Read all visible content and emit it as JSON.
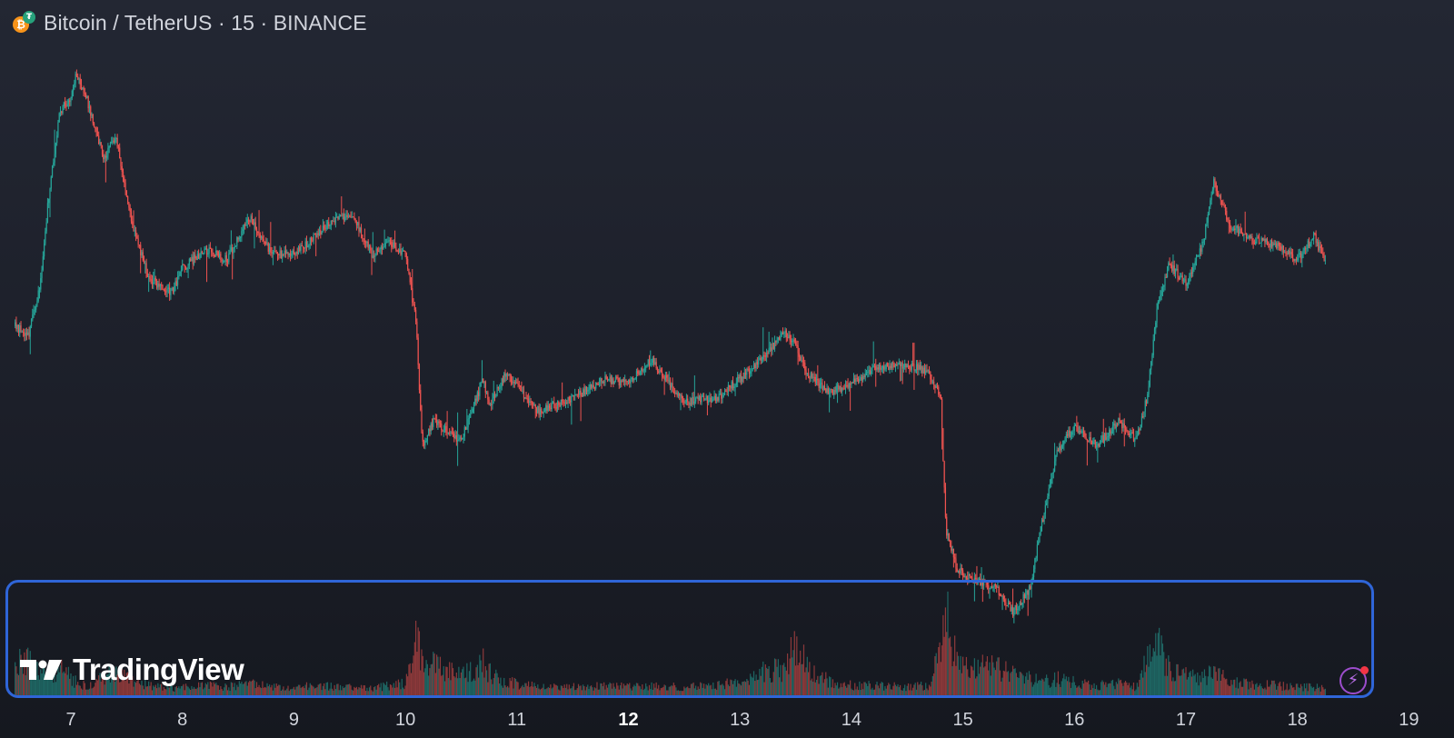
{
  "header": {
    "title": "Bitcoin / TetherUS · 15 · BINANCE",
    "icons": [
      "bitcoin-icon",
      "tether-icon"
    ]
  },
  "branding": {
    "logo_text": "TradingView"
  },
  "colors": {
    "up": "#26a69a",
    "down": "#ef5350",
    "highlight_border": "#2f65d8",
    "flash_button": "#9c4dcc"
  },
  "time_axis": {
    "labels": [
      {
        "text": "7",
        "bold": false
      },
      {
        "text": "8",
        "bold": false
      },
      {
        "text": "9",
        "bold": false
      },
      {
        "text": "10",
        "bold": false
      },
      {
        "text": "11",
        "bold": false
      },
      {
        "text": "12",
        "bold": true
      },
      {
        "text": "13",
        "bold": false
      },
      {
        "text": "14",
        "bold": false
      },
      {
        "text": "15",
        "bold": false
      },
      {
        "text": "16",
        "bold": false
      },
      {
        "text": "17",
        "bold": false
      },
      {
        "text": "18",
        "bold": false
      },
      {
        "text": "19",
        "bold": false
      }
    ]
  },
  "chart_data": {
    "type": "candlestick",
    "title": "Bitcoin / TetherUS · 15 · BINANCE",
    "interval": "15",
    "exchange": "BINANCE",
    "x": [
      6.5,
      6.62,
      6.72,
      6.8,
      6.9,
      7.0,
      7.05,
      7.15,
      7.3,
      7.4,
      7.55,
      7.7,
      7.9,
      8.0,
      8.2,
      8.4,
      8.6,
      8.8,
      9.0,
      9.2,
      9.4,
      9.55,
      9.7,
      9.85,
      10.0,
      10.1,
      10.15,
      10.25,
      10.5,
      10.7,
      10.75,
      10.9,
      11.2,
      11.5,
      11.8,
      12.0,
      12.2,
      12.5,
      12.8,
      13.0,
      13.2,
      13.4,
      13.5,
      13.6,
      13.8,
      14.0,
      14.2,
      14.5,
      14.7,
      14.8,
      14.85,
      14.95,
      15.1,
      15.3,
      15.45,
      15.6,
      15.72,
      15.85,
      16.0,
      16.2,
      16.4,
      16.55,
      16.65,
      16.75,
      16.85,
      17.0,
      17.15,
      17.25,
      17.4,
      17.6,
      17.8,
      18.0,
      18.15,
      18.25
    ],
    "close": [
      0.45,
      0.43,
      0.53,
      0.72,
      0.9,
      0.93,
      0.98,
      0.92,
      0.8,
      0.85,
      0.66,
      0.55,
      0.52,
      0.57,
      0.61,
      0.59,
      0.68,
      0.6,
      0.6,
      0.64,
      0.68,
      0.67,
      0.6,
      0.63,
      0.6,
      0.45,
      0.2,
      0.25,
      0.21,
      0.34,
      0.28,
      0.35,
      0.27,
      0.3,
      0.34,
      0.33,
      0.38,
      0.29,
      0.3,
      0.34,
      0.38,
      0.44,
      0.41,
      0.35,
      0.31,
      0.33,
      0.36,
      0.37,
      0.35,
      0.3,
      0.02,
      -0.06,
      -0.08,
      -0.1,
      -0.15,
      -0.1,
      0.05,
      0.19,
      0.24,
      0.2,
      0.25,
      0.21,
      0.3,
      0.5,
      0.58,
      0.54,
      0.62,
      0.75,
      0.66,
      0.63,
      0.62,
      0.59,
      0.64,
      0.58
    ],
    "volume": [
      0.18,
      0.22,
      0.14,
      0.12,
      0.18,
      0.1,
      0.08,
      0.06,
      0.12,
      0.14,
      0.08,
      0.06,
      0.04,
      0.05,
      0.06,
      0.05,
      0.07,
      0.05,
      0.05,
      0.06,
      0.05,
      0.05,
      0.04,
      0.06,
      0.07,
      0.38,
      0.26,
      0.18,
      0.12,
      0.2,
      0.14,
      0.08,
      0.05,
      0.05,
      0.06,
      0.05,
      0.06,
      0.05,
      0.06,
      0.08,
      0.14,
      0.16,
      0.3,
      0.18,
      0.08,
      0.06,
      0.06,
      0.05,
      0.06,
      0.26,
      0.48,
      0.2,
      0.16,
      0.18,
      0.12,
      0.1,
      0.08,
      0.1,
      0.08,
      0.06,
      0.07,
      0.05,
      0.2,
      0.3,
      0.16,
      0.12,
      0.1,
      0.14,
      0.08,
      0.07,
      0.06,
      0.05,
      0.05,
      0.04
    ],
    "x_ticks": [
      7,
      8,
      9,
      10,
      11,
      12,
      13,
      14,
      15,
      16,
      17,
      18,
      19
    ],
    "xlim": [
      6.4,
      19.2
    ],
    "ylim": [
      -0.2,
      1.0
    ],
    "y_axis_visible": false,
    "volume_pane": true,
    "legend": "none"
  }
}
